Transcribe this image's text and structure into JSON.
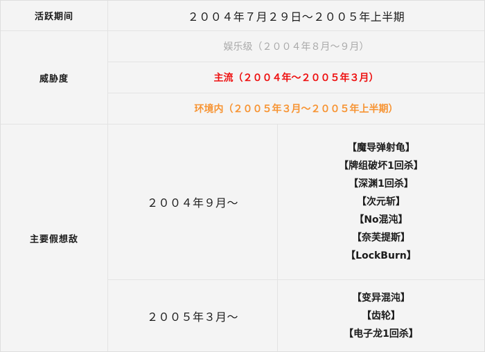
{
  "table": {
    "background_color": "#f4f4f4",
    "border_color": "#e3e3e3",
    "active_period": {
      "label": "活跃期间",
      "value": "２００４年７月２９日～２００５年上半期"
    },
    "threat_level": {
      "label": "威胁度",
      "levels": [
        {
          "text": "娱乐级（２００４年８月～９月）",
          "color": "#a9a9a9"
        },
        {
          "text": "主流（２００４年～２００５年３月）",
          "color": "#ee0f0f"
        },
        {
          "text": "环境内（２００５年３月～２００５年上半期）",
          "color": "#f79433"
        }
      ]
    },
    "main_enemies": {
      "label": "主要假想敌",
      "periods": [
        {
          "period": "２００４年９月～",
          "enemies": [
            "【魔导弹射龟】",
            "【牌组破坏1回杀】",
            "【深渊1回杀】",
            "【次元斩】",
            "【No混沌】",
            "【奈芙提斯】",
            "【LockBurn】"
          ]
        },
        {
          "period": "２００５年３月～",
          "enemies": [
            "【变异混沌】",
            "【齿轮】",
            "【电子龙1回杀】"
          ]
        }
      ]
    }
  }
}
